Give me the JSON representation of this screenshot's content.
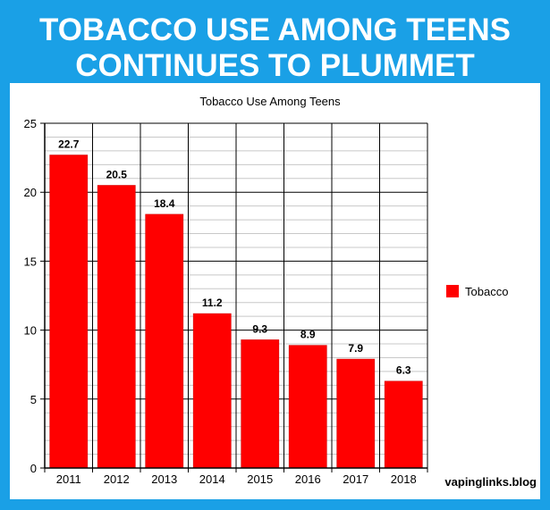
{
  "headline": {
    "line1": "TOBACCO USE AMONG TEENS",
    "line2": "CONTINUES TO PLUMMET"
  },
  "watermark": "vapinglinks.blog",
  "colors": {
    "background": "#1aa0e6",
    "panel": "#ffffff",
    "bar": "#ff0000"
  },
  "chart_data": {
    "type": "bar",
    "title": "Tobacco Use Among Teens",
    "xlabel": "",
    "ylabel": "",
    "categories": [
      "2011",
      "2012",
      "2013",
      "2014",
      "2015",
      "2016",
      "2017",
      "2018"
    ],
    "series": [
      {
        "name": "Tobacco",
        "values": [
          22.7,
          20.5,
          18.4,
          11.2,
          9.3,
          8.9,
          7.9,
          6.3
        ]
      }
    ],
    "ylim": [
      0,
      25
    ],
    "yticks": [
      0,
      5,
      10,
      15,
      20,
      25
    ],
    "minor_step": 1,
    "grid": true,
    "legend_position": "right",
    "data_labels": true
  }
}
